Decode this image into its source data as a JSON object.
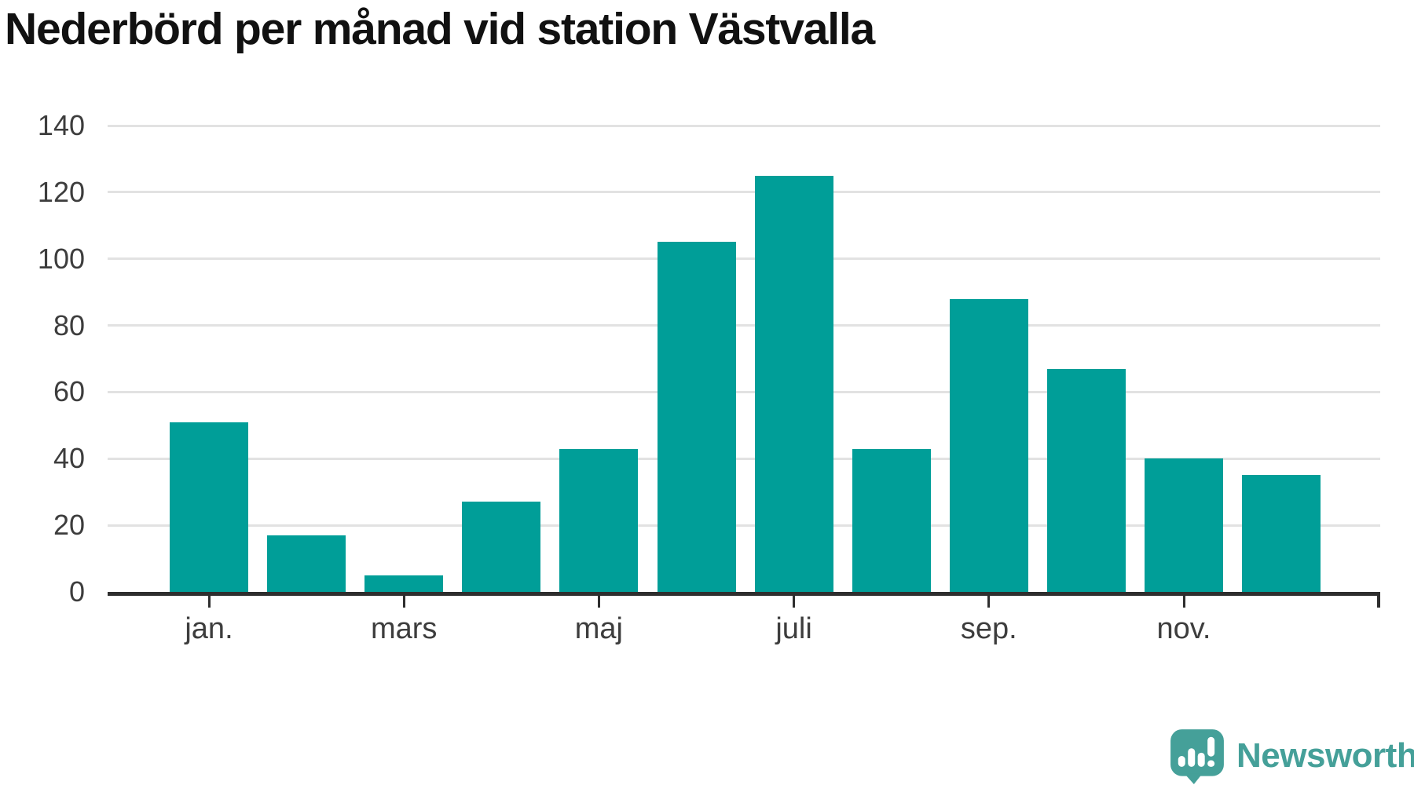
{
  "title": "Nederbörd per månad vid station Västvalla",
  "chart_data": {
    "type": "bar",
    "x_unit": "month",
    "n_bars": 12,
    "values": [
      51,
      17,
      5,
      27,
      43,
      105,
      125,
      43,
      88,
      67,
      40,
      35
    ],
    "x_ticks": {
      "labels": [
        "jan.",
        "mars",
        "maj",
        "juli",
        "sep.",
        "nov."
      ],
      "bar_positions": [
        0,
        2,
        4,
        6,
        8,
        10
      ]
    },
    "y_ticks": [
      0,
      20,
      40,
      60,
      80,
      100,
      120,
      140
    ],
    "ylim": [
      0,
      140
    ],
    "title": "Nederbörd per månad vid station Västvalla",
    "xlabel": "",
    "ylabel": "",
    "grid": true,
    "legend": false,
    "bar_color": "#009e98",
    "grid_color": "#e2e2e2",
    "axis_color": "#2e2e2e",
    "label_color": "#3d3d3d",
    "title_color": "#111111"
  },
  "branding": {
    "logo_text": "Newsworthy",
    "logo_color": "#45a099",
    "icon": "newsworthy-speech-bubble-bar-chart-icon"
  }
}
